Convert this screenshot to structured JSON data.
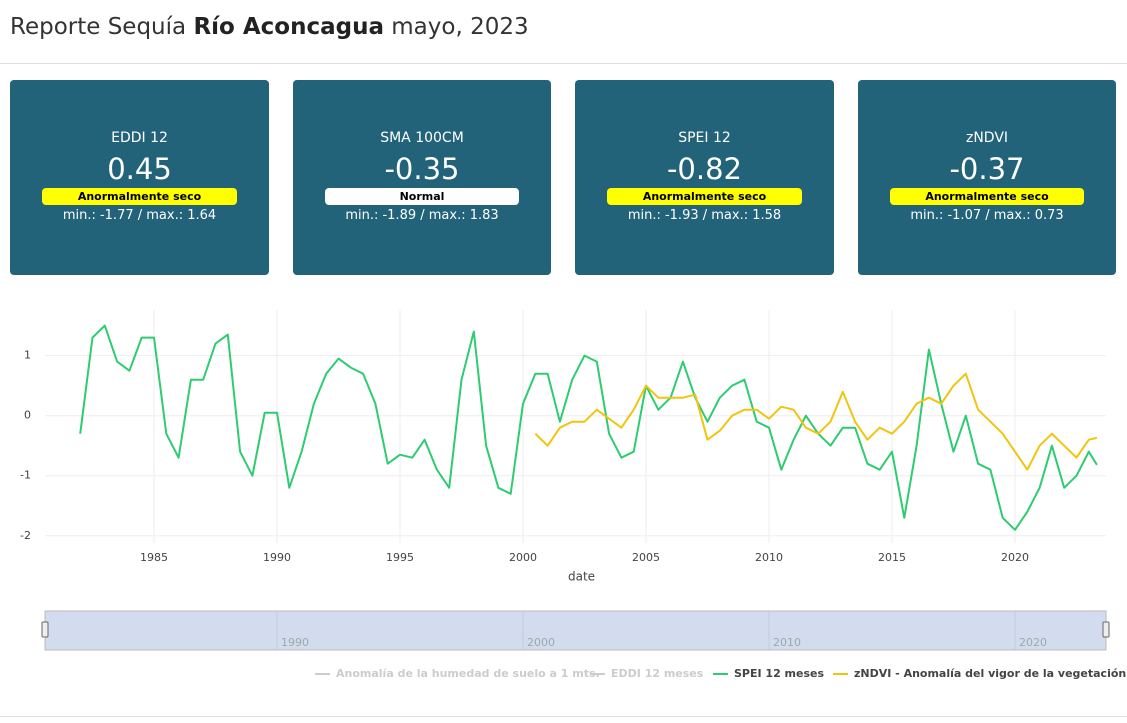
{
  "header": {
    "title_prefix": "Reporte Sequía",
    "basin": "Río Aconcagua",
    "period": "mayo, 2023"
  },
  "cards": [
    {
      "title": "EDDI 12",
      "value": 0.45,
      "badge": "Anormalmente seco",
      "badge_color": "#ffff00",
      "range": "min.: -1.77 / max.: 1.64"
    },
    {
      "title": "SMA 100CM",
      "value": -0.35,
      "badge": "Normal",
      "badge_color": "#ffffff",
      "range": "min.: -1.89 / max.: 1.83"
    },
    {
      "title": "SPEI 12",
      "value": -0.82,
      "badge": "Anormalmente seco",
      "badge_color": "#ffff00",
      "range": "min.: -1.93 / max.: 1.58"
    },
    {
      "title": "zNDVI",
      "value": -0.37,
      "badge": "Anormalmente seco",
      "badge_color": "#ffff00",
      "range": "min.: -1.07 / max.: 0.73"
    }
  ],
  "chart_data": {
    "type": "line",
    "x_label": "date",
    "grid": true,
    "xlim": [
      1980.57,
      2023.7
    ],
    "ylim": [
      -2.12,
      1.76
    ],
    "xticks": [
      1985,
      1990,
      1995,
      2000,
      2005,
      2010,
      2015,
      2020
    ],
    "yticks": [
      -2,
      -1,
      0,
      1
    ],
    "rangeslider_xticks": [
      1990,
      2000,
      2010,
      2020
    ],
    "x": [
      1982,
      1982.5,
      1983,
      1983.5,
      1984,
      1984.5,
      1985,
      1985.5,
      1986,
      1986.5,
      1987,
      1987.5,
      1988,
      1988.5,
      1989,
      1989.5,
      1990,
      1990.5,
      1991,
      1991.5,
      1992,
      1992.5,
      1993,
      1993.5,
      1994,
      1994.5,
      1995,
      1995.5,
      1996,
      1996.5,
      1997,
      1997.5,
      1998,
      1998.5,
      1999,
      1999.5,
      2000,
      2000.5,
      2001,
      2001.5,
      2002,
      2002.5,
      2003,
      2003.5,
      2004,
      2004.5,
      2005,
      2005.5,
      2006,
      2006.5,
      2007,
      2007.5,
      2008,
      2008.5,
      2009,
      2009.5,
      2010,
      2010.5,
      2011,
      2011.5,
      2012,
      2012.5,
      2013,
      2013.5,
      2014,
      2014.5,
      2015,
      2015.5,
      2016,
      2016.5,
      2017,
      2017.5,
      2018,
      2018.5,
      2019,
      2019.5,
      2020,
      2020.5,
      2021,
      2021.5,
      2022,
      2022.5,
      2023,
      2023.33
    ],
    "series": [
      {
        "name": "Anomalía de la humedad de suelo a 1 mts.",
        "color": "#cccccc",
        "visible": false
      },
      {
        "name": "EDDI 12 meses",
        "color": "#cccccc",
        "visible": false
      },
      {
        "name": "SPEI 12 meses",
        "color": "#2ecc71",
        "visible": true,
        "values": [
          -0.3,
          1.3,
          1.5,
          0.9,
          0.75,
          1.3,
          1.3,
          -0.3,
          -0.7,
          0.6,
          0.6,
          1.2,
          1.35,
          -0.6,
          -1.0,
          0.05,
          0.05,
          -1.2,
          -0.6,
          0.2,
          0.7,
          0.95,
          0.8,
          0.7,
          0.2,
          -0.8,
          -0.65,
          -0.7,
          -0.4,
          -0.9,
          -1.2,
          0.6,
          1.4,
          -0.5,
          -1.2,
          -1.3,
          0.2,
          0.7,
          0.7,
          -0.1,
          0.6,
          1.0,
          0.9,
          -0.3,
          -0.7,
          -0.6,
          0.5,
          0.1,
          0.3,
          0.9,
          0.3,
          -0.1,
          0.3,
          0.5,
          0.6,
          -0.1,
          -0.2,
          -0.9,
          -0.4,
          0.0,
          -0.3,
          -0.5,
          -0.2,
          -0.2,
          -0.8,
          -0.9,
          -0.6,
          -1.7,
          -0.5,
          1.1,
          0.2,
          -0.6,
          0.0,
          -0.8,
          -0.9,
          -1.7,
          -1.9,
          -1.6,
          -1.2,
          -0.5,
          -1.2,
          -1.0,
          -0.6,
          -0.82
        ]
      },
      {
        "name": "zNDVI - Anomalía del vigor de la vegetación",
        "color": "#f1c40f",
        "visible": true,
        "values": [
          null,
          null,
          null,
          null,
          null,
          null,
          null,
          null,
          null,
          null,
          null,
          null,
          null,
          null,
          null,
          null,
          null,
          null,
          null,
          null,
          null,
          null,
          null,
          null,
          null,
          null,
          null,
          null,
          null,
          null,
          null,
          null,
          null,
          null,
          null,
          null,
          null,
          -0.3,
          -0.5,
          -0.2,
          -0.1,
          -0.1,
          0.1,
          -0.05,
          -0.2,
          0.1,
          0.5,
          0.3,
          0.3,
          0.3,
          0.35,
          -0.4,
          -0.25,
          0.0,
          0.1,
          0.1,
          -0.05,
          0.15,
          0.1,
          -0.2,
          -0.3,
          -0.1,
          0.4,
          -0.1,
          -0.4,
          -0.2,
          -0.3,
          -0.1,
          0.2,
          0.3,
          0.2,
          0.5,
          0.7,
          0.1,
          -0.1,
          -0.3,
          -0.6,
          -0.9,
          -0.5,
          -0.3,
          -0.5,
          -0.7,
          -0.4,
          -0.37
        ]
      }
    ]
  }
}
